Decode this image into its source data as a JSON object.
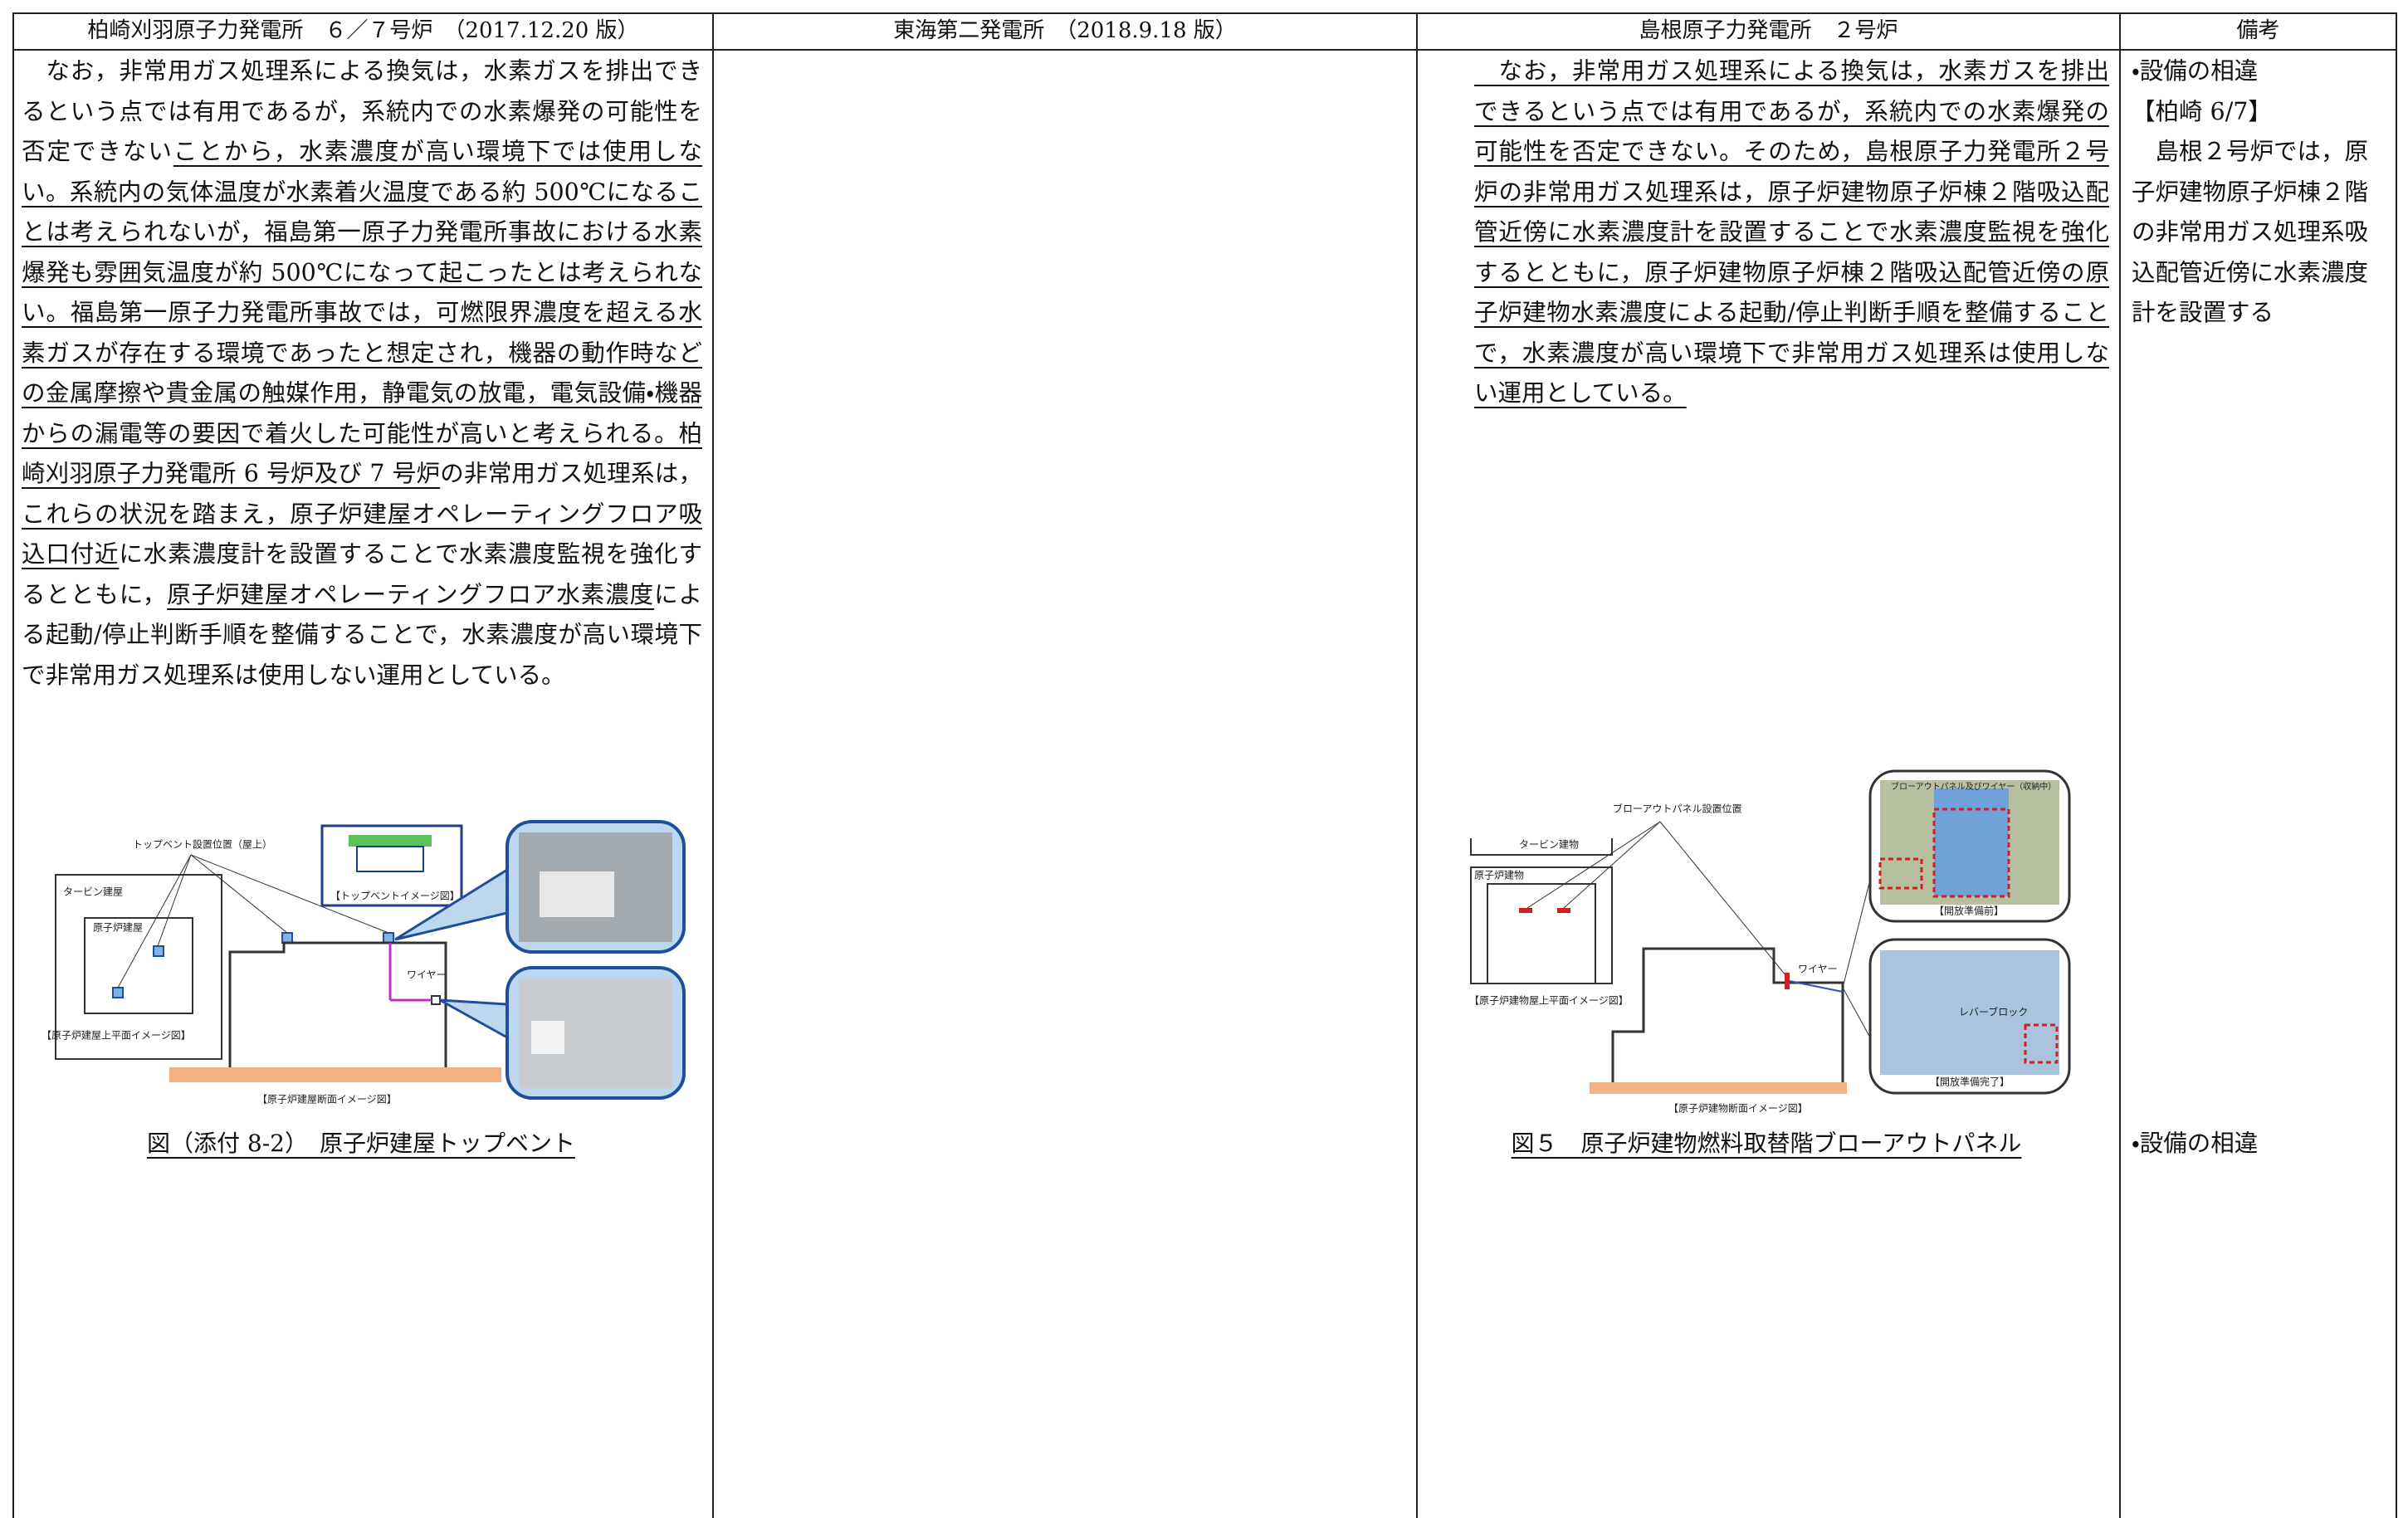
{
  "header": {
    "columns": [
      "柏崎刈羽原子力発電所　６／７号炉　（2017.12.20 版）",
      "東海第二発電所　（2018.9.18 版）",
      "島根原子力発電所　２号炉",
      "備考"
    ]
  },
  "kashiwazaki": {
    "paragraph": [
      {
        "text": "　なお，非常用ガス処理系による換気は，水素ガスを排出できるという点では有用であるが，系統内での水素爆発の可能性を否定できない",
        "underline": false
      },
      {
        "text": "ことから，水素濃度が高い環境下では使用しない。系統内の気体温度が水素着火温度である約 500℃になることは考えられないが，福島第一原子力発電所事故における水素爆発も雰囲気温度が約 500℃になって起こったとは考えられない。福島第一原子力発電所事故では，可燃限界濃度を超える水素ガスが存在する環境であったと想定され，機器の動作時などの金属摩擦や貴金属の触媒作用，静電気の放電，電気設備・機器からの漏電等の要因で着火した可能性が高いと考えられる。柏崎刈羽原子力発電所 6 号炉及び 7 号炉",
        "underline": true
      },
      {
        "text": "の非常用ガス処理系は，",
        "underline": false
      },
      {
        "text": "これらの状況を踏まえ，",
        "underline": true
      },
      {
        "text": "原子炉建屋オペレーティングフロア吸込口付近",
        "underline": true
      },
      {
        "text": "に水素濃度計を設置することで水素濃度監視を強化するとともに，",
        "underline": false
      },
      {
        "text": "原子炉建屋オペレーティングフロア水素濃度",
        "underline": true
      },
      {
        "text": "による起動/停止判断手順を整備することで，水素濃度が高い環境下で非常用ガス処理系は使用しない運用としている。",
        "underline": false
      }
    ],
    "figure": {
      "labels": [
        "トップベント設置位置（屋上）",
        "タービン建屋",
        "原子炉建屋",
        "ワイヤー",
        "【トップベントイメージ図】",
        "【原子炉建屋上平面イメージ図】",
        "【原子炉建屋断面イメージ図】"
      ],
      "caption": "図（添付 8-2）　原子炉建屋トップベント"
    }
  },
  "shimane": {
    "paragraph": [
      {
        "text": "　なお，非常用ガス処理系による換気は，水素ガスを排出できるという点では有用であるが，系統内での水素爆発の可能性を否定できない。そのため，島根原子力発電所２号炉の非常用ガス処理系は，原子炉建物原子炉棟２階吸込配管近傍に水素濃度計を設置することで水素濃度監視を強化するとともに，原子炉建物原子炉棟２階吸込配管近傍の原子炉建物水素濃度による起動/停止判断手順を整備することで，水素濃度が高い環境下で非常用ガス処理系は使用しない運用としている。",
        "underline": true
      }
    ],
    "figure": {
      "labels": [
        "ブローアウトパネル設置位置",
        "タービン建物",
        "原子炉建物",
        "ワイヤー",
        "【原子炉建物屋上平面イメージ図】",
        "【原子炉建物断面イメージ図】",
        "ブローアウトパネル及びワイヤー（収納中）",
        "【開放準備前】",
        "レバーブロック",
        "【開放準備完了】"
      ],
      "caption": "図５　原子炉建物燃料取替階ブローアウトパネル"
    }
  },
  "remarks": {
    "items": [
      "・設備の相違",
      "【柏崎 6/7】",
      "　島根２号炉では，原子炉建物原子炉棟２階の非常用ガス処理系吸込配管近傍に水素濃度計を設置する"
    ],
    "figure_note": "・設備の相違"
  }
}
